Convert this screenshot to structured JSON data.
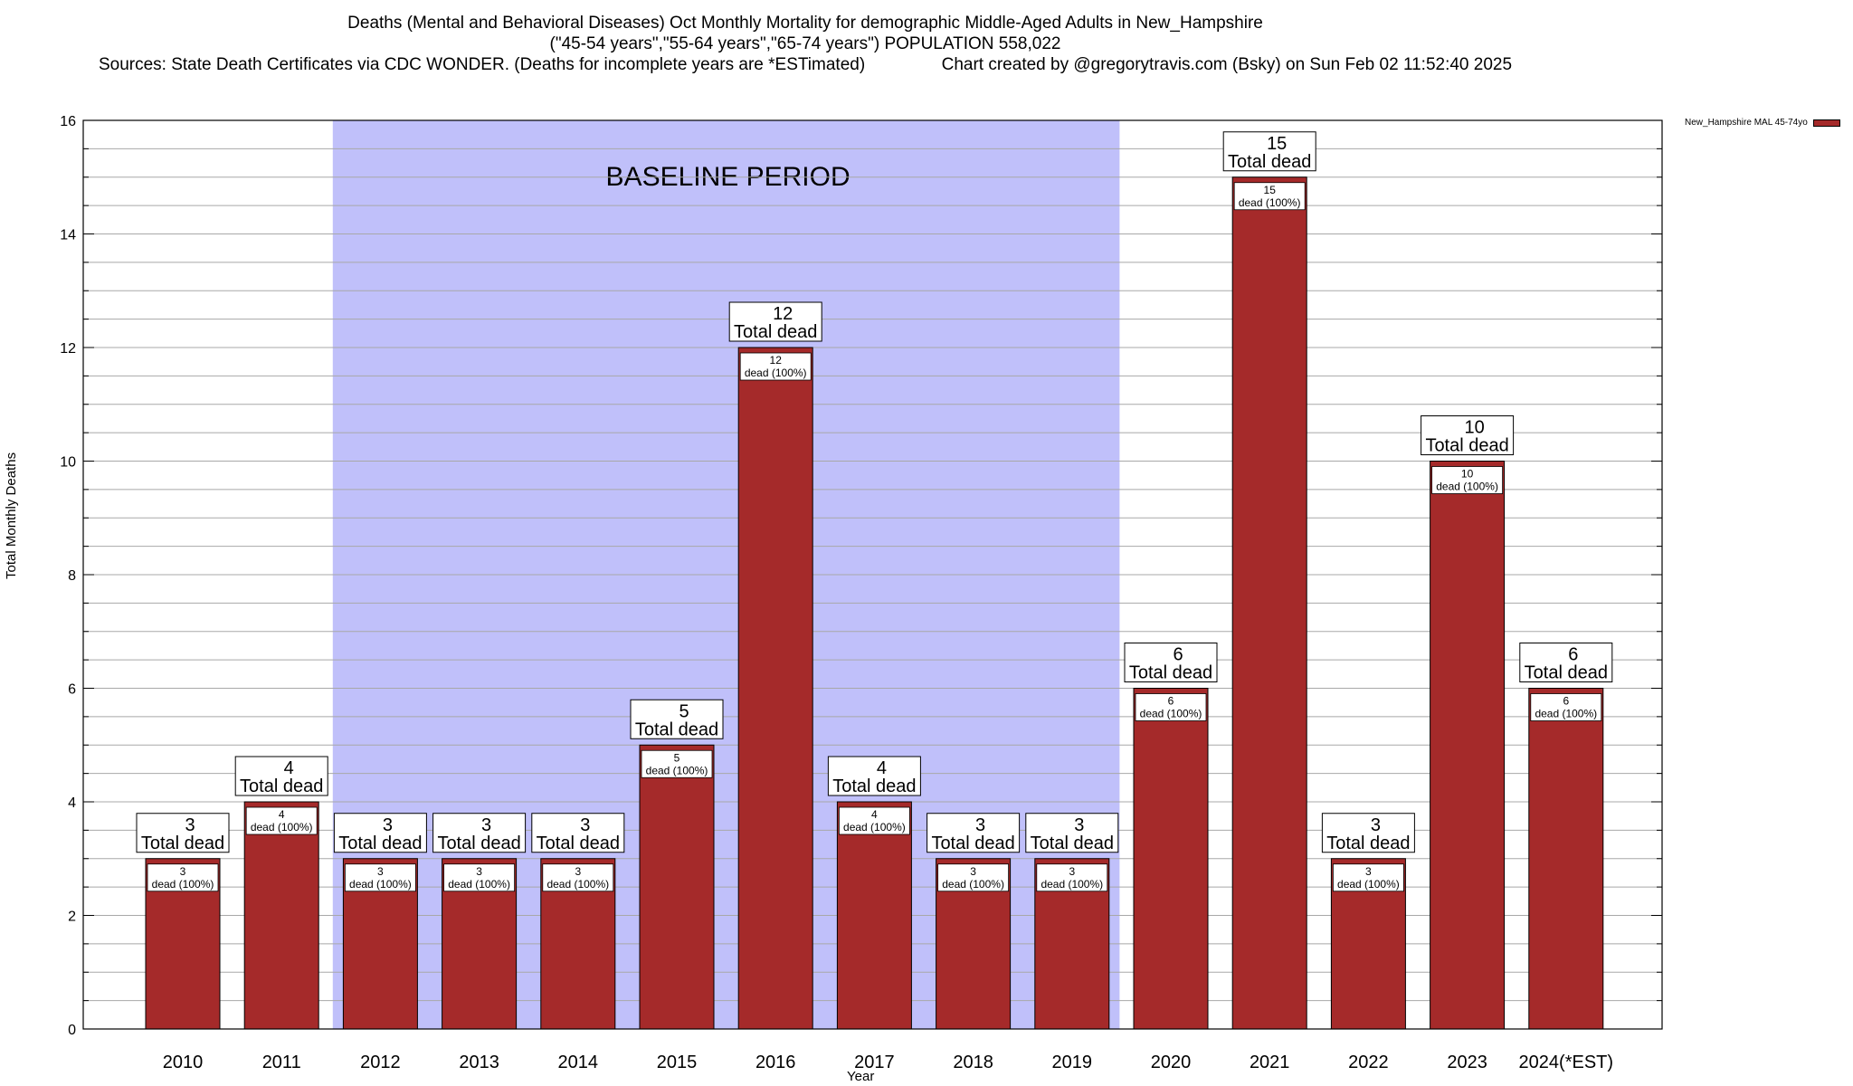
{
  "header": {
    "title_line1": "Deaths (Mental and Behavioral Diseases) Oct Monthly Mortality for demographic Middle-Aged Adults in New_Hampshire",
    "title_line2": "(\"45-54 years\",\"55-64 years\",\"65-74 years\") POPULATION 558,022",
    "title_line3": "Sources: State Death Certificates via CDC WONDER. (Deaths for incomplete years are *ESTimated)                Chart created by @gregorytravis.com (Bsky) on Sun Feb 02 11:52:40 2025"
  },
  "legend": {
    "label": "New_Hampshire MAL 45-74yo",
    "color": "#a52a2a"
  },
  "chart_data": {
    "type": "bar",
    "xlabel": "Year",
    "ylabel": "Total Monthly Deaths",
    "ylim": [
      0,
      16
    ],
    "yticks": [
      0,
      2,
      4,
      6,
      8,
      10,
      12,
      14,
      16
    ],
    "grid": true,
    "legend_position": "top-right",
    "categories": [
      "2010",
      "2011",
      "2012",
      "2013",
      "2014",
      "2015",
      "2016",
      "2017",
      "2018",
      "2019",
      "2020",
      "2021",
      "2022",
      "2023",
      "2024(*EST)"
    ],
    "series": [
      {
        "name": "New_Hampshire MAL 45-74yo",
        "values": [
          3,
          4,
          3,
          3,
          3,
          5,
          12,
          4,
          3,
          3,
          6,
          15,
          3,
          10,
          6
        ]
      }
    ],
    "total_label": "Total dead",
    "inner_label": "dead (100%)",
    "baseline": {
      "label": "BASELINE PERIOD",
      "from": "2012",
      "to": "2019",
      "color": "#c0c0fa"
    },
    "bar_color": "#a52a2a"
  }
}
